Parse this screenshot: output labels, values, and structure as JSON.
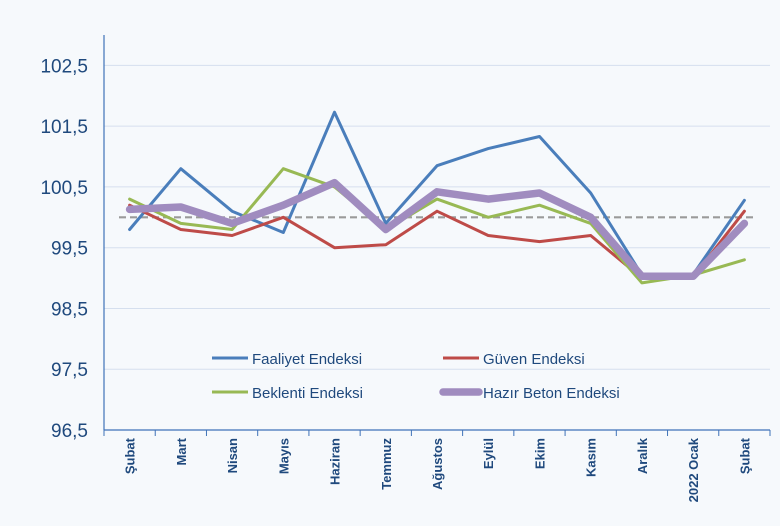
{
  "chart_data": {
    "type": "line",
    "categories": [
      "Şubat",
      "Mart",
      "Nisan",
      "Mayıs",
      "Haziran",
      "Temmuz",
      "Ağustos",
      "Eylül",
      "Ekim",
      "Kasım",
      "Aralık",
      "2022 Ocak",
      "Şubat"
    ],
    "y_ticks": [
      "96,5",
      "97,5",
      "98,5",
      "99,5",
      "100,5",
      "101,5",
      "102,5"
    ],
    "ylim": [
      96.5,
      103.0
    ],
    "reference_line": 100,
    "grid": "horizontal",
    "legend_position": "bottom-center",
    "series": [
      {
        "name": "Faaliyet Endeksi",
        "color": "#4a7ebb",
        "values": [
          99.8,
          100.8,
          100.1,
          99.75,
          101.73,
          99.9,
          100.85,
          101.13,
          101.33,
          100.4,
          99.05,
          99.06,
          100.28
        ]
      },
      {
        "name": "Güven Endeksi",
        "color": "#be4b48",
        "values": [
          100.2,
          99.8,
          99.7,
          100.0,
          99.5,
          99.55,
          100.1,
          99.7,
          99.6,
          99.7,
          99.0,
          99.02,
          100.1
        ]
      },
      {
        "name": "Beklenti Endeksi",
        "color": "#98b954",
        "values": [
          100.3,
          99.9,
          99.8,
          100.8,
          100.5,
          99.8,
          100.3,
          100.0,
          100.2,
          99.9,
          98.92,
          99.05,
          99.3
        ]
      },
      {
        "name": "Hazır Beton Endeksi",
        "color": "#a08cbf",
        "values": [
          100.13,
          100.17,
          99.9,
          100.2,
          100.57,
          99.8,
          100.42,
          100.3,
          100.4,
          100.0,
          99.03,
          99.03,
          99.9
        ]
      }
    ]
  }
}
